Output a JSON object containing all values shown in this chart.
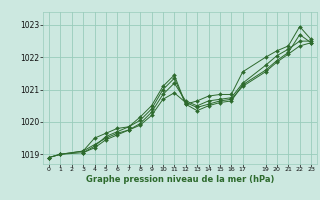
{
  "title": "Graphe pression niveau de la mer (hPa)",
  "bg_color": "#cce8e0",
  "grid_color": "#99ccbb",
  "line_color": "#2d6a2d",
  "marker_color": "#2d6a2d",
  "xlim": [
    -0.5,
    23.5
  ],
  "ylim": [
    1018.7,
    1023.4
  ],
  "yticks": [
    1019,
    1020,
    1021,
    1022,
    1023
  ],
  "xticks": [
    0,
    1,
    2,
    3,
    4,
    5,
    6,
    7,
    8,
    9,
    10,
    11,
    12,
    13,
    14,
    15,
    16,
    17,
    19,
    20,
    21,
    22,
    23
  ],
  "series": [
    {
      "x": [
        0,
        1,
        3,
        4,
        5,
        6,
        7,
        8,
        9,
        10,
        11,
        12,
        13,
        14,
        15,
        16,
        17,
        19,
        20,
        21,
        22,
        23
      ],
      "y": [
        1018.9,
        1019.0,
        1019.1,
        1019.5,
        1019.65,
        1019.8,
        1019.85,
        1020.15,
        1020.5,
        1021.1,
        1021.45,
        1020.55,
        1020.65,
        1020.8,
        1020.85,
        1020.85,
        1021.55,
        1022.0,
        1022.2,
        1022.35,
        1022.95,
        1022.55
      ]
    },
    {
      "x": [
        0,
        1,
        3,
        4,
        5,
        6,
        7,
        8,
        9,
        10,
        11,
        12,
        13,
        14,
        15,
        16,
        17,
        19,
        20,
        21,
        22,
        23
      ],
      "y": [
        1018.9,
        1019.0,
        1019.05,
        1019.2,
        1019.45,
        1019.6,
        1019.75,
        1019.9,
        1020.2,
        1020.7,
        1020.9,
        1020.6,
        1020.45,
        1020.55,
        1020.65,
        1020.7,
        1021.1,
        1021.55,
        1021.85,
        1022.1,
        1022.35,
        1022.45
      ]
    },
    {
      "x": [
        0,
        1,
        3,
        4,
        5,
        6,
        7,
        8,
        9,
        10,
        11,
        12,
        13,
        14,
        15,
        16,
        17,
        19,
        20,
        21,
        22,
        23
      ],
      "y": [
        1018.9,
        1019.0,
        1019.1,
        1019.3,
        1019.5,
        1019.65,
        1019.75,
        1019.95,
        1020.3,
        1020.85,
        1021.2,
        1020.65,
        1020.5,
        1020.65,
        1020.7,
        1020.75,
        1021.2,
        1021.75,
        1022.05,
        1022.25,
        1022.5,
        1022.5
      ]
    },
    {
      "x": [
        3,
        4,
        5,
        6,
        7,
        8,
        9,
        10,
        11,
        12,
        13,
        14,
        15,
        16,
        17,
        19,
        20,
        21,
        22,
        23
      ],
      "y": [
        1019.05,
        1019.25,
        1019.55,
        1019.7,
        1019.85,
        1020.05,
        1020.4,
        1021.0,
        1021.35,
        1020.55,
        1020.35,
        1020.5,
        1020.6,
        1020.65,
        1021.15,
        1021.6,
        1021.9,
        1022.15,
        1022.7,
        1022.45
      ]
    }
  ]
}
